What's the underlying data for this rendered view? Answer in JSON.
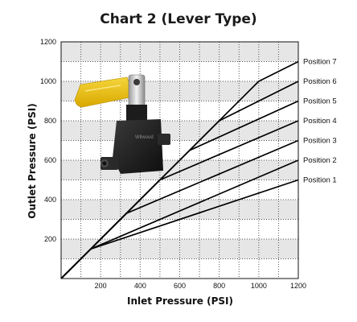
{
  "chart_data": {
    "type": "line",
    "title": "Chart 2 (Lever Type)",
    "xlabel": "Inlet Pressure (PSI)",
    "ylabel": "Outlet Pressure (PSI)",
    "xlim": [
      0,
      1200
    ],
    "ylim": [
      0,
      1200
    ],
    "x_ticks": [
      200,
      400,
      600,
      800,
      1000,
      1200
    ],
    "y_ticks": [
      200,
      400,
      600,
      800,
      1000,
      1200
    ],
    "grid": "dotted",
    "legend": "labels at right end of lines",
    "series": [
      {
        "name": "Position 1",
        "points": [
          [
            0,
            0
          ],
          [
            150,
            150
          ],
          [
            1200,
            500
          ]
        ]
      },
      {
        "name": "Position 2",
        "points": [
          [
            0,
            0
          ],
          [
            150,
            150
          ],
          [
            1200,
            600
          ]
        ]
      },
      {
        "name": "Position 3",
        "points": [
          [
            0,
            0
          ],
          [
            330,
            330
          ],
          [
            1200,
            700
          ]
        ]
      },
      {
        "name": "Position 4",
        "points": [
          [
            0,
            0
          ],
          [
            500,
            500
          ],
          [
            1200,
            800
          ]
        ]
      },
      {
        "name": "Position 5",
        "points": [
          [
            0,
            0
          ],
          [
            650,
            650
          ],
          [
            1200,
            900
          ]
        ]
      },
      {
        "name": "Position 6",
        "points": [
          [
            0,
            0
          ],
          [
            800,
            800
          ],
          [
            1200,
            1000
          ]
        ]
      },
      {
        "name": "Position 7",
        "points": [
          [
            0,
            0
          ],
          [
            1000,
            1000
          ],
          [
            1200,
            1100
          ]
        ]
      }
    ]
  },
  "product_image": {
    "description": "lever",
    "brand_text": "Wilwood"
  }
}
